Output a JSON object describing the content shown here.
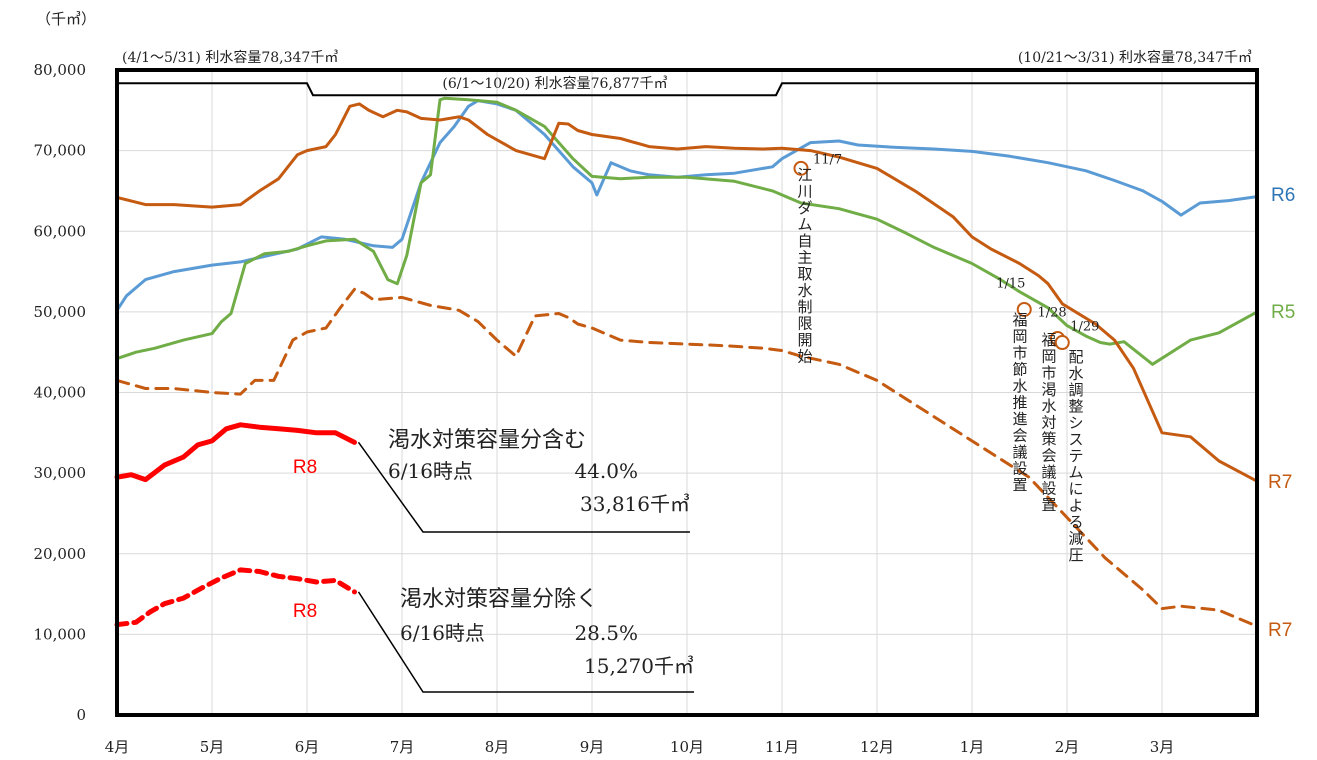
{
  "chart_data": {
    "type": "line",
    "unit_label": "（千㎥）",
    "ylim": [
      0,
      80000
    ],
    "y_ticks": [
      {
        "value": 0,
        "label": "0"
      },
      {
        "value": 10000,
        "label": "10,000"
      },
      {
        "value": 20000,
        "label": "20,000"
      },
      {
        "value": 30000,
        "label": "30,000"
      },
      {
        "value": 40000,
        "label": "40,000"
      },
      {
        "value": 50000,
        "label": "50,000"
      },
      {
        "value": 60000,
        "label": "60,000"
      },
      {
        "value": 70000,
        "label": "70,000"
      },
      {
        "value": 80000,
        "label": "80,000"
      }
    ],
    "x_ticks": [
      "4月",
      "5月",
      "6月",
      "7月",
      "8月",
      "9月",
      "10月",
      "11月",
      "12月",
      "1月",
      "2月",
      "3月"
    ],
    "xlim_months": [
      0,
      12
    ],
    "grid": true,
    "capacity_line": {
      "color": "#000000",
      "segments": [
        {
          "x": [
            0.0,
            2.0,
            2.0,
            7.0,
            7.0,
            12.0
          ],
          "y": [
            78347,
            78347,
            76877,
            76877,
            78347,
            78347
          ]
        }
      ],
      "labels": [
        {
          "text": "(4/1～5/31) 利水容量78,347千㎥"
        },
        {
          "text": "(6/1～10/20) 利水容量76,877千㎥"
        },
        {
          "text": "(10/21～3/31) 利水容量78,347千㎥"
        }
      ]
    },
    "series": [
      {
        "name": "R6",
        "color": "#5B9BD5",
        "dash": false,
        "width": 3,
        "x": [
          0.0,
          0.1,
          0.3,
          0.6,
          1.0,
          1.3,
          1.6,
          1.9,
          2.15,
          2.4,
          2.7,
          2.9,
          3.0,
          3.2,
          3.4,
          3.55,
          3.7,
          3.8,
          4.0,
          4.2,
          4.4,
          4.5,
          4.8,
          5.0,
          5.05,
          5.2,
          5.4,
          5.6,
          5.9,
          6.2,
          6.5,
          6.9,
          7.0,
          7.3,
          7.6,
          7.8,
          8.2,
          8.6,
          9.0,
          9.4,
          9.8,
          10.2,
          10.5,
          10.8,
          11.0,
          11.2,
          11.4,
          11.7,
          12.0
        ],
        "y": [
          50200,
          52000,
          54000,
          55000,
          55800,
          56200,
          57000,
          57800,
          59300,
          59000,
          58200,
          58000,
          59000,
          66000,
          71000,
          73000,
          75500,
          76200,
          75800,
          75000,
          73000,
          72000,
          68000,
          66000,
          64500,
          68500,
          67500,
          67000,
          66700,
          67000,
          67200,
          68000,
          69000,
          71000,
          71200,
          70700,
          70400,
          70200,
          69900,
          69300,
          68500,
          67500,
          66300,
          65000,
          63700,
          62000,
          63500,
          63800,
          64300
        ]
      },
      {
        "name": "R5",
        "color": "#70AD47",
        "dash": false,
        "width": 3,
        "x": [
          0.0,
          0.2,
          0.4,
          0.7,
          1.0,
          1.1,
          1.2,
          1.35,
          1.55,
          1.8,
          2.0,
          2.2,
          2.5,
          2.7,
          2.85,
          2.95,
          3.05,
          3.2,
          3.3,
          3.4,
          3.45,
          3.7,
          4.0,
          4.2,
          4.5,
          4.8,
          5.0,
          5.3,
          5.6,
          6.0,
          6.5,
          6.9,
          7.2,
          7.6,
          8.0,
          8.3,
          8.6,
          9.0,
          9.3,
          9.5,
          9.8,
          10.0,
          10.2,
          10.35,
          10.45,
          10.6,
          10.9,
          11.3,
          11.6,
          12.0
        ],
        "y": [
          44200,
          45000,
          45500,
          46500,
          47300,
          48800,
          49800,
          56000,
          57200,
          57500,
          58200,
          58800,
          59000,
          57500,
          54000,
          53500,
          57000,
          66000,
          67000,
          76300,
          76500,
          76300,
          76000,
          75000,
          73000,
          69000,
          66800,
          66500,
          66700,
          66700,
          66200,
          65000,
          63500,
          62800,
          61500,
          59800,
          58000,
          56000,
          54000,
          52500,
          50500,
          48300,
          47000,
          46200,
          46000,
          46300,
          43500,
          46500,
          47400,
          50000
        ]
      },
      {
        "name": "R7",
        "color": "#C55A11",
        "dash": false,
        "width": 3,
        "x": [
          0.0,
          0.3,
          0.6,
          1.0,
          1.3,
          1.5,
          1.7,
          1.9,
          2.0,
          2.2,
          2.3,
          2.45,
          2.55,
          2.65,
          2.8,
          2.95,
          3.05,
          3.2,
          3.4,
          3.6,
          3.7,
          3.9,
          4.05,
          4.2,
          4.5,
          4.65,
          4.75,
          4.85,
          5.0,
          5.3,
          5.6,
          5.9,
          6.2,
          6.5,
          6.8,
          7.0,
          7.3,
          7.6,
          8.0,
          8.4,
          8.8,
          9.0,
          9.2,
          9.5,
          9.7,
          9.8,
          9.95,
          10.3,
          10.5,
          10.7,
          11.0,
          11.3,
          11.6,
          12.0
        ],
        "y": [
          64200,
          63300,
          63300,
          63000,
          63300,
          65000,
          66500,
          69500,
          70000,
          70500,
          72000,
          75500,
          75800,
          75000,
          74200,
          75000,
          74800,
          74000,
          73800,
          74200,
          73800,
          72000,
          71000,
          70000,
          69000,
          73400,
          73300,
          72500,
          72000,
          71500,
          70500,
          70200,
          70500,
          70300,
          70200,
          70300,
          70000,
          69200,
          67800,
          65000,
          61800,
          59300,
          57800,
          56000,
          54500,
          53500,
          51000,
          48500,
          46500,
          43000,
          35000,
          34500,
          31500,
          29000
        ]
      },
      {
        "name": "R7",
        "color": "#C55A11",
        "dash": true,
        "width": 3,
        "x": [
          0.0,
          0.3,
          0.6,
          1.0,
          1.3,
          1.45,
          1.65,
          1.85,
          2.0,
          2.2,
          2.35,
          2.5,
          2.6,
          2.7,
          3.0,
          3.3,
          3.6,
          3.8,
          4.0,
          4.2,
          4.4,
          4.65,
          4.75,
          4.85,
          5.0,
          5.3,
          5.6,
          6.0,
          6.4,
          6.8,
          7.0,
          7.2,
          7.6,
          8.0,
          8.4,
          8.8,
          9.2,
          9.6,
          10.0,
          10.4,
          10.8,
          11.0,
          11.2,
          11.6,
          12.0
        ],
        "y": [
          41500,
          40500,
          40500,
          40000,
          39800,
          41500,
          41500,
          46500,
          47500,
          48000,
          50500,
          52800,
          52300,
          51500,
          51800,
          50800,
          50200,
          48800,
          46500,
          44500,
          49500,
          49800,
          49300,
          48500,
          48000,
          46500,
          46200,
          46000,
          45800,
          45500,
          45200,
          44500,
          43500,
          41500,
          38500,
          35500,
          32500,
          29500,
          24500,
          19500,
          15500,
          13200,
          13500,
          13000,
          11000
        ]
      },
      {
        "name": "R8",
        "color": "#FF0000",
        "dash": false,
        "width": 5,
        "x": [
          0.0,
          0.15,
          0.3,
          0.5,
          0.7,
          0.85,
          1.0,
          1.15,
          1.3,
          1.5,
          1.7,
          1.9,
          2.1,
          2.3,
          2.5
        ],
        "y": [
          29500,
          29800,
          29200,
          31000,
          32000,
          33500,
          34000,
          35500,
          36000,
          35700,
          35500,
          35300,
          35000,
          35000,
          33816
        ]
      },
      {
        "name": "R8",
        "color": "#FF0000",
        "dash": true,
        "width": 5,
        "x": [
          0.0,
          0.2,
          0.35,
          0.5,
          0.7,
          0.9,
          1.1,
          1.3,
          1.5,
          1.7,
          1.9,
          2.1,
          2.3,
          2.5
        ],
        "y": [
          11200,
          11500,
          12800,
          13800,
          14500,
          15800,
          17000,
          18000,
          17800,
          17200,
          16900,
          16500,
          16700,
          15270
        ]
      }
    ],
    "series_labels": [
      {
        "text": "R6",
        "color": "#2E75B6"
      },
      {
        "text": "R5",
        "color": "#70AD47"
      },
      {
        "text": "R7",
        "color": "#C55A11"
      },
      {
        "text": "R7",
        "color": "#C55A11"
      },
      {
        "text": "R8",
        "color": "#FF0000"
      },
      {
        "text": "R8",
        "color": "#FF0000"
      }
    ],
    "event_markers": [
      {
        "x": 7.2,
        "y": 67800,
        "date": "11/7",
        "text": "江川ダム自主取水制限開始"
      },
      {
        "x": 9.55,
        "y": 50300,
        "date": "1/15",
        "text": "福岡市節水推進会議設置"
      },
      {
        "x": 9.9,
        "y": 46700,
        "date": "1/28",
        "text": "福岡市渇水対策会議設置"
      },
      {
        "x": 9.95,
        "y": 46200,
        "date": "1/29",
        "text": "配水調整システムによる減圧"
      }
    ],
    "callouts": [
      {
        "title": "渇水対策容量分含む",
        "line1_label": "6/16時点",
        "line1_value": "44.0%",
        "line2_value": "33,816千㎥"
      },
      {
        "title": "渇水対策容量分除く",
        "line1_label": "6/16時点",
        "line1_value": "28.5%",
        "line2_value": "15,270千㎥"
      }
    ]
  }
}
